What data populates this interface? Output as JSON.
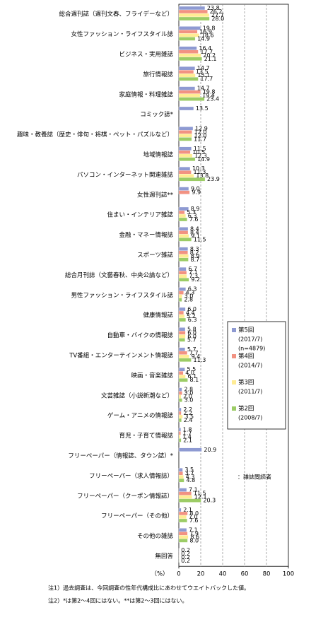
{
  "chart_data": {
    "type": "hbar",
    "categories": [
      "総合週刊誌（週刊文春、フライデーなど）",
      "女性ファッション・ライフスタイル誌",
      "ビジネス・実用雑誌",
      "旅行情報誌",
      "家庭情報・料理雑誌",
      "コミック誌*",
      "趣味・教養誌（歴史・俳句・将棋・ペット・パズルなど）",
      "地域情報誌",
      "パソコン・インターネット関連雑誌",
      "女性週刊誌**",
      "住まい・インテリア雑誌",
      "金融・マネー情報誌",
      "スポーツ雑誌",
      "総合月刊誌（文藝春秋、中央公論など）",
      "男性ファッション・ライフスタイル誌",
      "健康情報誌",
      "自動車・バイクの情報誌",
      "TV番組・エンターテインメント情報誌",
      "映画・音楽雑誌",
      "文芸雑誌（小説新潮など）",
      "ゲーム・アニメの情報誌",
      "育児・子育て情報誌",
      "フリーペーパー（情報誌、タウン誌）*",
      "フリーペーパー（求人情報誌）",
      "フリーペーパー（クーポン情報誌）",
      "フリーペーパー（その他）",
      "その他の雑誌",
      "無回答"
    ],
    "series": [
      {
        "name": "第5回",
        "period": "(2017/7)",
        "note": "(n=4879)",
        "color": "#8e9ad2",
        "values": [
          23.8,
          19.8,
          16.4,
          14.7,
          14.7,
          13.5,
          12.9,
          11.5,
          10.3,
          9.0,
          8.9,
          8.4,
          8.3,
          6.7,
          6.3,
          6.0,
          5.8,
          5.7,
          5.5,
          2.8,
          2.2,
          1.8,
          20.9,
          3.5,
          7.1,
          2.1,
          7.1,
          0.2
        ],
        "value_labels": [
          "23.8",
          "19.8",
          "16.4",
          "14.7",
          "14.7",
          "13.5",
          "12.9",
          "11.5",
          "10.3",
          "9.0",
          "8.9",
          "8.4",
          "8.3",
          "6.7",
          "6.3",
          "6.0",
          "5.8",
          "5.7",
          "5.5",
          "2.8",
          "2.2",
          "1.8",
          "20.9",
          "3.5",
          "7.1",
          "2.1",
          "7.1",
          "0.2"
        ]
      },
      {
        "name": "第4回",
        "period": "(2014/7)",
        "color": "#f29282",
        "values": [
          26.2,
          16.9,
          17.7,
          13.5,
          19.8,
          null,
          12.0,
          10.5,
          11.3,
          9.9,
          5.3,
          8.4,
          8.2,
          7.1,
          4.3,
          4.4,
          6.0,
          7.7,
          4.0,
          3.0,
          2.2,
          1.7,
          null,
          3.7,
          11.5,
          8.0,
          7.9,
          0.2
        ],
        "value_labels": [
          "26.2",
          "16.9",
          "17.7",
          "13.5",
          "19.8",
          null,
          "12.0",
          "10.5",
          "11.3",
          "9.9",
          "5.3",
          "8.4",
          "8.2",
          "7.1",
          "4.3",
          "4.4",
          "6.0",
          "7.7",
          "4.0",
          "3.0",
          "2.2",
          "1.7",
          null,
          "3.7",
          "11.5",
          "8.0",
          "7.9",
          "0.2"
        ]
      },
      {
        "name": "第3回",
        "period": "(2011/7)",
        "color": "#ffec94",
        "values": [
          27.7,
          18.6,
          20.2,
          15.1,
          19.4,
          null,
          12.0,
          12.3,
          13.8,
          null,
          6.3,
          9.1,
          8.9,
          7.3,
          3.0,
          5.2,
          6.0,
          9.4,
          6.1,
          2.0,
          3.5,
          1.4,
          null,
          4.3,
          12.1,
          7.0,
          8.6,
          0.2
        ],
        "value_labels": [
          "27.7",
          "18.6",
          "20.2",
          "15.1",
          "19.4",
          null,
          "12.0",
          "12.3",
          "13.8",
          null,
          "6.3",
          "9.1",
          "8.9",
          "7.3",
          "3.0",
          "5.2",
          "6.0",
          "9.4",
          "6.1",
          "2.0",
          "3.5",
          "1.4",
          null,
          "4.3",
          "12.1",
          "7.0",
          "8.6",
          "0.2"
        ]
      },
      {
        "name": "第2回",
        "period": "(2008/7)",
        "color": "#9ccc66",
        "values": [
          28.0,
          14.9,
          21.1,
          17.7,
          23.4,
          null,
          11.7,
          14.9,
          23.9,
          null,
          7.6,
          11.5,
          8.7,
          9.2,
          2.8,
          6.3,
          5.7,
          11.3,
          8.1,
          3.0,
          2.4,
          2.1,
          null,
          4.8,
          20.3,
          7.6,
          8.0,
          0.2
        ],
        "value_labels": [
          "28.0",
          "14.9",
          "21.1",
          "17.7",
          "23.4",
          null,
          "11.7",
          "14.9",
          "23.9",
          null,
          "7.6",
          "11.5",
          "8.7",
          "9.2",
          "2.8",
          "6.3",
          "5.7",
          "11.3",
          "8.1",
          "3.0",
          "2.4",
          "2.1",
          null,
          "4.8",
          "20.3",
          "7.6",
          "8.0",
          "0.2"
        ]
      }
    ],
    "xlim": [
      0,
      100
    ],
    "xticks": [
      0,
      20,
      40,
      60,
      80,
      100
    ],
    "x_unit": "（%）",
    "grid": true,
    "annotation": "：雑誌閲読者",
    "notes": [
      "注1）過去調査は、今回調査の性年代構成比にあわせてウエイトバックした値。",
      "注2）*は第2～4回にはない。**は第2～3回にはない。"
    ]
  }
}
